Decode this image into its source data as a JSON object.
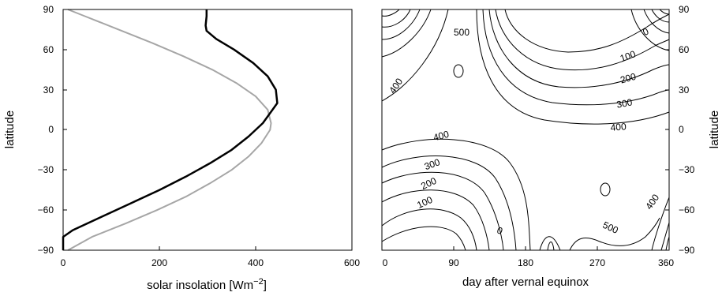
{
  "chart_data": [
    {
      "type": "line",
      "xlabel": "solar insolation [Wm",
      "xlabel_sup": "−2",
      "xlabel_close": "]",
      "ylabel": "latitude",
      "xlim": [
        0,
        600
      ],
      "ylim": [
        -90,
        90
      ],
      "xticks": [
        "0",
        "200",
        "400",
        "600"
      ],
      "yticks": [
        "90",
        "60",
        "30",
        "0",
        "−30",
        "−60",
        "−90"
      ],
      "grid": false,
      "series": [
        {
          "color": "#000000",
          "points": [
            [
              0,
              -90
            ],
            [
              0,
              -80
            ],
            [
              20,
              -75
            ],
            [
              80,
              -65
            ],
            [
              140,
              -55
            ],
            [
              200,
              -45
            ],
            [
              255,
              -35
            ],
            [
              305,
              -25
            ],
            [
              350,
              -15
            ],
            [
              385,
              -5
            ],
            [
              415,
              5
            ],
            [
              435,
              15
            ],
            [
              445,
              20
            ],
            [
              442,
              30
            ],
            [
              425,
              40
            ],
            [
              395,
              50
            ],
            [
              355,
              60
            ],
            [
              318,
              68
            ],
            [
              298,
              74
            ],
            [
              296,
              78
            ],
            [
              298,
              85
            ],
            [
              298,
              90
            ]
          ]
        },
        {
          "color": "#a6a6a6",
          "points": [
            [
              10,
              -90
            ],
            [
              60,
              -80
            ],
            [
              130,
              -70
            ],
            [
              195,
              -60
            ],
            [
              255,
              -50
            ],
            [
              305,
              -40
            ],
            [
              350,
              -30
            ],
            [
              385,
              -20
            ],
            [
              412,
              -10
            ],
            [
              430,
              0
            ],
            [
              432,
              5
            ],
            [
              425,
              15
            ],
            [
              400,
              25
            ],
            [
              360,
              35
            ],
            [
              310,
              45
            ],
            [
              250,
              55
            ],
            [
              185,
              65
            ],
            [
              115,
              75
            ],
            [
              45,
              85
            ],
            [
              10,
              90
            ]
          ]
        }
      ]
    },
    {
      "type": "contour",
      "xlabel": "day after vernal equinox",
      "ylabel": "latitude",
      "xlim": [
        0,
        360
      ],
      "ylim": [
        -90,
        90
      ],
      "xticks": [
        "0",
        "90",
        "180",
        "270",
        "360"
      ],
      "yticks": [
        "90",
        "60",
        "30",
        "0",
        "−30",
        "−60",
        "−90"
      ],
      "grid": false,
      "levels": [
        0,
        100,
        200,
        300,
        400,
        500
      ],
      "contour_labels": [
        "500",
        "400",
        "0",
        "100",
        "200",
        "300",
        "400",
        "400",
        "300",
        "200",
        "100",
        "0",
        "500",
        "400"
      ]
    }
  ]
}
